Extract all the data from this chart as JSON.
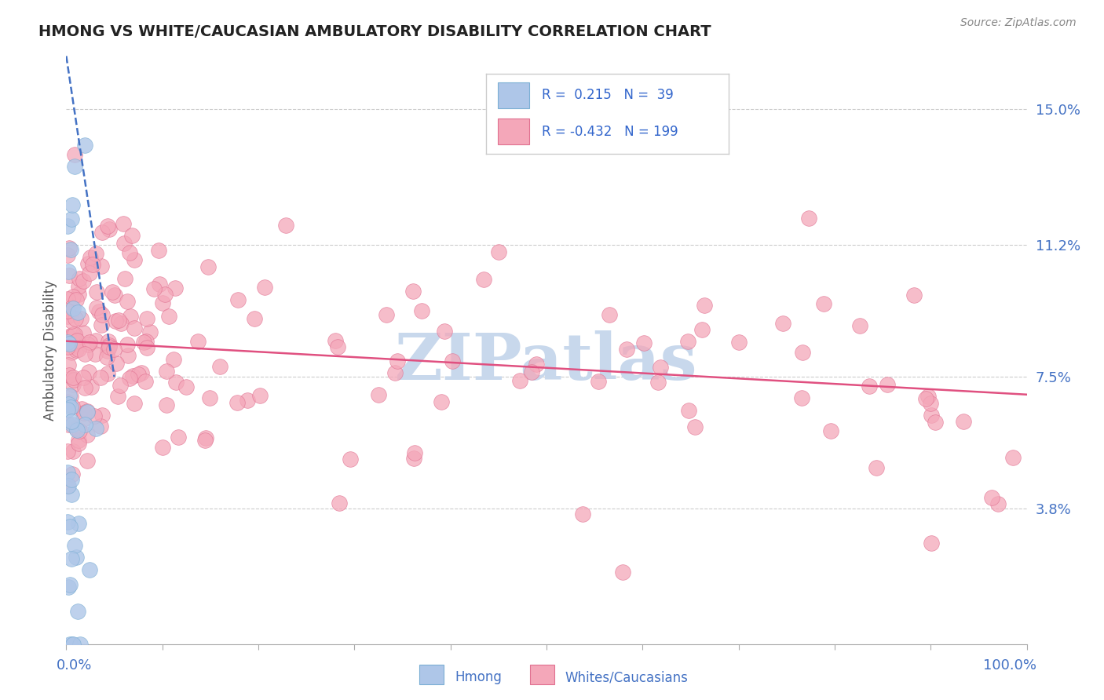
{
  "title": "HMONG VS WHITE/CAUCASIAN AMBULATORY DISABILITY CORRELATION CHART",
  "source_text": "Source: ZipAtlas.com",
  "ylabel": "Ambulatory Disability",
  "xmin": 0.0,
  "xmax": 1.0,
  "ymin": 0.0,
  "ymax": 0.165,
  "yticks": [
    0.038,
    0.075,
    0.112,
    0.15
  ],
  "ytick_labels": [
    "3.8%",
    "7.5%",
    "11.2%",
    "15.0%"
  ],
  "title_color": "#222222",
  "title_fontsize": 14,
  "tick_label_color": "#4472c4",
  "grid_color": "#cccccc",
  "background_color": "#ffffff",
  "hmong_color": "#aec6e8",
  "hmong_edge_color": "#7bafd4",
  "white_color": "#f4a7b9",
  "white_edge_color": "#e07090",
  "hmong_line_color": "#4472c4",
  "white_line_color": "#e05080",
  "watermark_color": "#c8d8ec",
  "watermark_text": "ZIPatlas",
  "R_hmong": 0.215,
  "N_hmong": 39,
  "R_white": -0.432,
  "N_white": 199
}
